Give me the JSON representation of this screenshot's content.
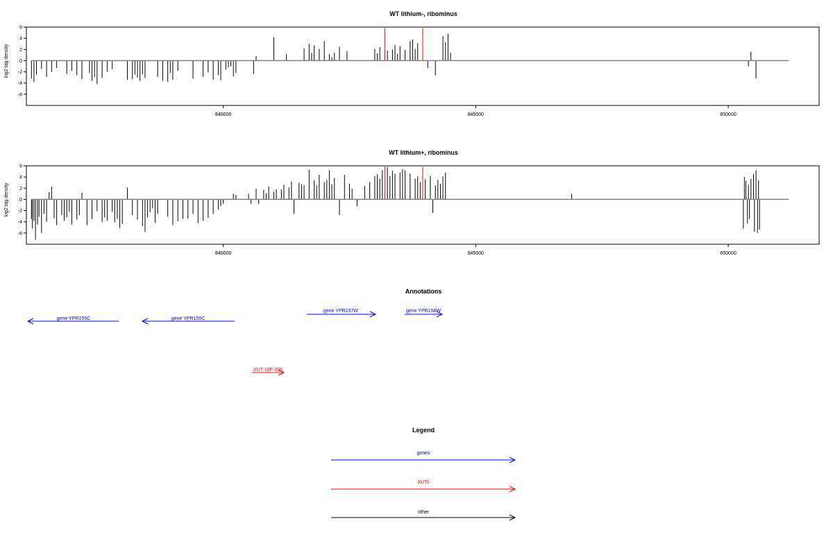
{
  "chart_data": [
    {
      "type": "bar",
      "title": "WT lithium-, ribominus",
      "ylabel": "log2 tag density",
      "xlim": [
        836100,
        851800
      ],
      "ylim": [
        -8,
        6
      ],
      "yticks": [
        6,
        4,
        2,
        0,
        -2,
        -4,
        -6
      ],
      "xticks": [
        840000,
        845000,
        850000
      ],
      "grid": false,
      "baseline": {
        "from": 836200,
        "to": 851200,
        "color": "#808080"
      },
      "series": [
        {
          "color": "#000000",
          "x": [
            836200,
            836250,
            836300,
            836400,
            836500,
            836600,
            836700,
            836900,
            837000,
            837100,
            837200,
            837350,
            837400,
            837450,
            837500,
            837600,
            837700,
            837800,
            838100,
            838200,
            838250,
            838300,
            838350,
            838400,
            838450,
            838700,
            838800,
            838900,
            838950,
            839000,
            839100,
            839400,
            839600,
            839700,
            839800,
            839900,
            839950,
            840050,
            840100,
            840150,
            840200,
            840250,
            840600,
            840650,
            841000,
            841250,
            841600,
            841700,
            841750,
            841800,
            841900,
            842000,
            842100,
            842150,
            842200,
            842300,
            842450,
            843000,
            843050,
            843100,
            843200,
            843250,
            843350,
            843400,
            843450,
            843500,
            843600,
            843700,
            843750,
            843800,
            843850,
            844050,
            844200,
            844350,
            844400,
            844450,
            844500,
            850400,
            850450,
            850550
          ],
          "values": [
            -3.2,
            -3.8,
            -2.5,
            -1.5,
            -2.9,
            -2,
            -1.3,
            -2.4,
            -1.8,
            -2.6,
            -3.3,
            -2.2,
            -3.6,
            -2.9,
            -4.2,
            -3.1,
            -2,
            -1.5,
            -3.4,
            -3.3,
            -2.5,
            -3,
            -3.6,
            -2.4,
            -3.1,
            -2.9,
            -3.6,
            -3.8,
            -2.2,
            -3.4,
            -1.8,
            -3.2,
            -2.9,
            -2.1,
            -3.4,
            -2.6,
            -3.5,
            -1.6,
            -1.2,
            -1,
            -2.8,
            -2.2,
            -2.4,
            0.8,
            4.2,
            1.2,
            2.2,
            3,
            1.4,
            2.7,
            2.1,
            3.5,
            1.2,
            0.6,
            1.4,
            2.5,
            1.7,
            2.1,
            1.3,
            2.4,
            1.6,
            1.8,
            2,
            2.8,
            1.2,
            2.6,
            1.9,
            3.5,
            3.8,
            2.1,
            3.1,
            -1.3,
            -2.6,
            4.4,
            3.3,
            4.8,
            1.4,
            -1,
            1.6,
            -3.2
          ]
        },
        {
          "color": "#ff0000",
          "x": [
            843200,
            843950
          ],
          "values": [
            5.8,
            5.8
          ]
        }
      ]
    },
    {
      "type": "bar",
      "title": "WT lithium+, ribominus",
      "ylabel": "log2 tag density",
      "xlim": [
        836100,
        851800
      ],
      "ylim": [
        -8,
        6
      ],
      "yticks": [
        6,
        4,
        2,
        0,
        -2,
        -4,
        -6
      ],
      "xticks": [
        840000,
        845000,
        850000
      ],
      "grid": false,
      "baseline": {
        "from": 836200,
        "to": 851200,
        "color": "#808080"
      },
      "series": [
        {
          "color": "#000000",
          "x": [
            836200,
            836220,
            836250,
            836280,
            836320,
            836350,
            836400,
            836450,
            836500,
            836550,
            836600,
            836650,
            836700,
            836800,
            836850,
            836900,
            836950,
            837000,
            837100,
            837150,
            837200,
            837300,
            837400,
            837500,
            837600,
            837650,
            837700,
            837800,
            837850,
            837900,
            837950,
            838000,
            838100,
            838200,
            838300,
            838400,
            838450,
            838500,
            838550,
            838600,
            838650,
            838700,
            838900,
            839000,
            839100,
            839200,
            839300,
            839400,
            839500,
            839600,
            839700,
            839800,
            839900,
            839950,
            840000,
            840200,
            840250,
            840500,
            840550,
            840650,
            840700,
            840800,
            840850,
            840900,
            841000,
            841050,
            841150,
            841200,
            841300,
            841350,
            841400,
            841500,
            841550,
            841600,
            841700,
            841800,
            841850,
            841900,
            842000,
            842050,
            842100,
            842150,
            842200,
            842300,
            842400,
            842500,
            842550,
            842650,
            842800,
            842900,
            843000,
            843050,
            843100,
            843150,
            843250,
            843300,
            843350,
            843400,
            843500,
            843550,
            843600,
            843700,
            843800,
            843850,
            843900,
            844000,
            844100,
            844150,
            844200,
            844250,
            844300,
            844350,
            844400,
            846900,
            850300,
            850320,
            850350,
            850380,
            850400,
            850420,
            850450,
            850500,
            850520,
            850550,
            850580,
            850600,
            850620
          ],
          "values": [
            -3.5,
            -5.2,
            -3.8,
            -7.2,
            -4.5,
            -3.1,
            -6,
            -2.6,
            -4,
            1.3,
            2.3,
            -3.4,
            -4.6,
            -2.8,
            -3.8,
            -3.2,
            -2.2,
            -4.5,
            -3.6,
            -2.8,
            1.2,
            -4.6,
            -3.5,
            -2.1,
            -4.1,
            -3.2,
            -3.8,
            -2.2,
            -4.1,
            -3.5,
            -5.1,
            -4.4,
            2.1,
            -2.8,
            -3.6,
            -4.8,
            -5.8,
            -3.2,
            -2.3,
            -1.6,
            -4.2,
            -2.6,
            -3.1,
            -4.6,
            -3.9,
            -3.5,
            -3.4,
            -2.6,
            -4.2,
            -3.8,
            -3.3,
            -2.6,
            -1.8,
            -1.2,
            -0.8,
            1,
            0.8,
            1,
            -0.8,
            1.9,
            -0.8,
            1.7,
            1.1,
            2.3,
            1.4,
            1.8,
            1.8,
            2.6,
            2.1,
            3.2,
            -2.6,
            3,
            2.7,
            2.5,
            5.3,
            3.4,
            2.5,
            4.4,
            3.1,
            3.5,
            5.2,
            2.7,
            3.8,
            -2.8,
            4.4,
            2.8,
            1.9,
            -1.2,
            2.4,
            3.1,
            4.2,
            4.5,
            3.7,
            5.2,
            5.8,
            4.2,
            5.1,
            4.6,
            4.8,
            5.4,
            5.2,
            4.6,
            3.7,
            4.1,
            3.1,
            3.6,
            4.2,
            -2.4,
            2.5,
            3.5,
            2.8,
            4.1,
            4.8,
            1,
            -5.2,
            4,
            3.3,
            -4.3,
            2.6,
            -3.5,
            3.7,
            4.5,
            -5.8,
            5.2,
            -6,
            3.4,
            -5.4
          ]
        },
        {
          "color": "#ff0000",
          "x": [
            843200,
            843950
          ],
          "values": [
            5.8,
            5.8
          ]
        }
      ]
    }
  ],
  "annotations": {
    "title": "Annotations",
    "items": [
      {
        "label": "gene YPR155C",
        "color": "#0000ff"
      },
      {
        "label": "gene YPR156C",
        "color": "#0000ff"
      },
      {
        "label": "gene YPR157W",
        "color": "#0000ff"
      },
      {
        "label": "gene YPR158W",
        "color": "#0000ff"
      },
      {
        "label": "XUT 16F-338",
        "color": "#ff0000"
      }
    ]
  },
  "legend": {
    "title": "Legend",
    "items": [
      {
        "label": "genes",
        "color": "#0000ff"
      },
      {
        "label": "XUTs",
        "color": "#ff0000"
      },
      {
        "label": "other",
        "color": "#000000"
      }
    ]
  }
}
